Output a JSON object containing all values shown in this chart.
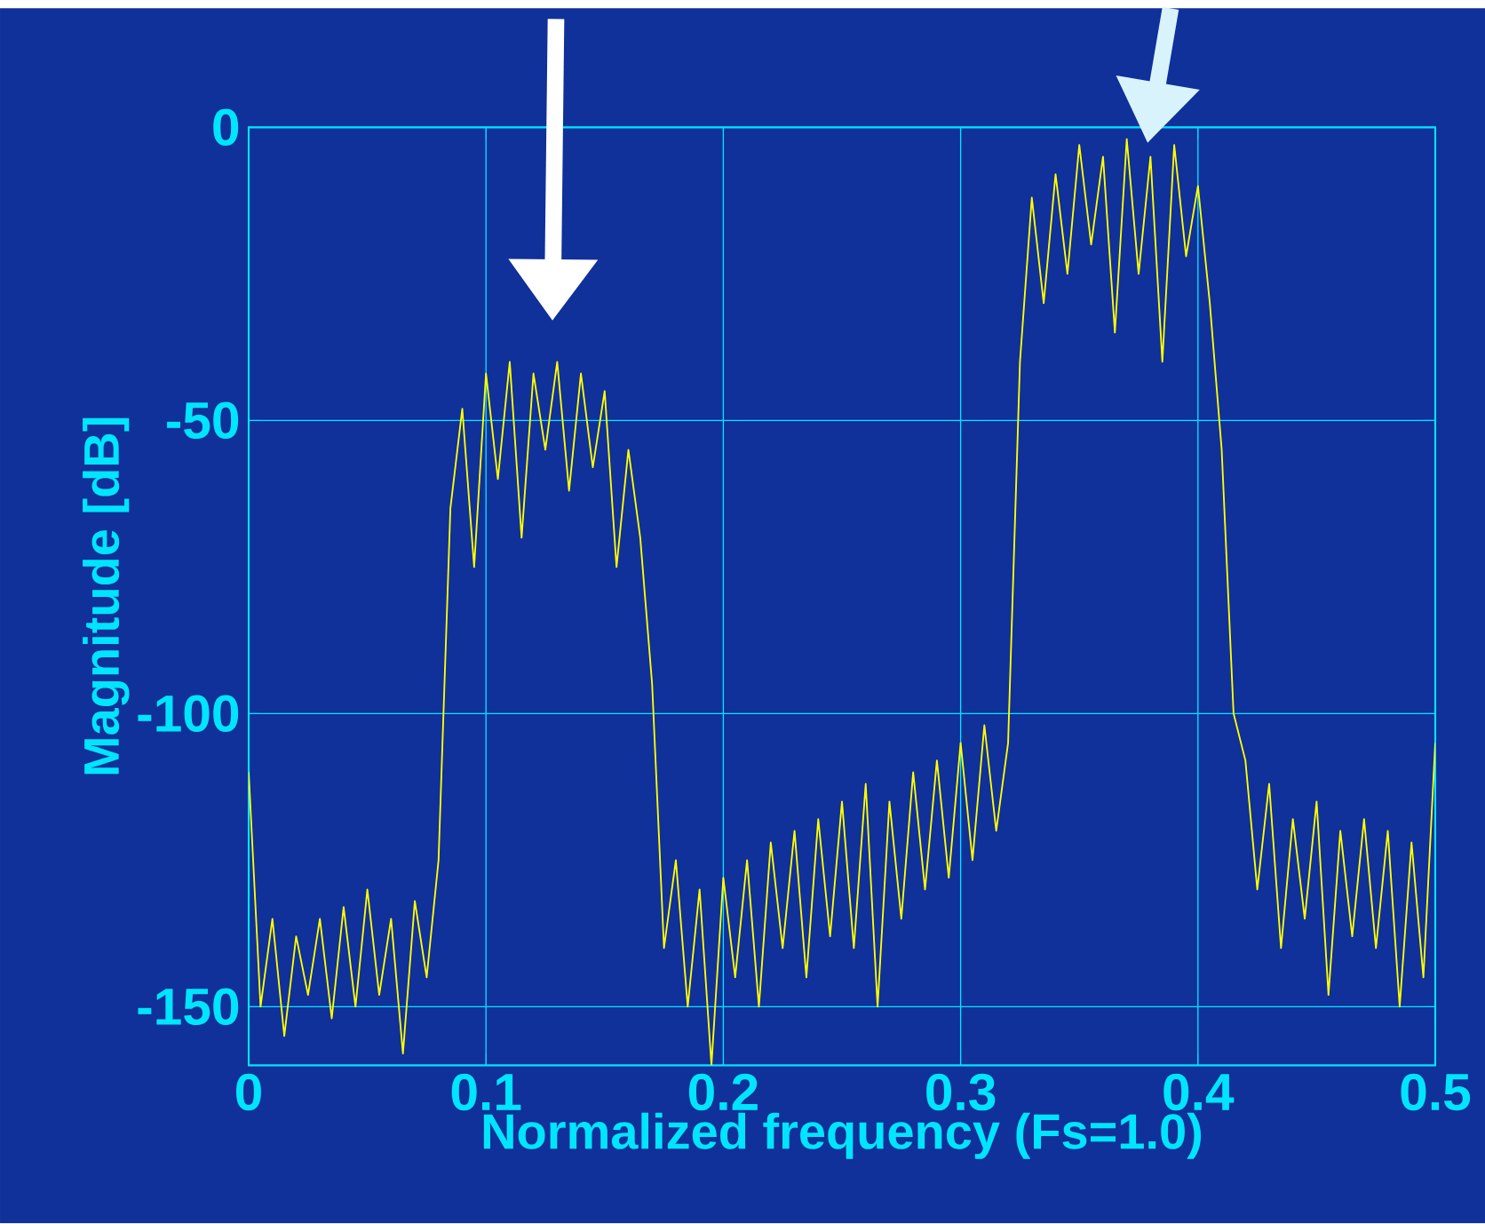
{
  "chart_data": {
    "type": "line",
    "xlabel": "Normalized frequency (Fs=1.0)",
    "ylabel": "Magnitude [dB]",
    "x": [
      0.0,
      0.005,
      0.01,
      0.015,
      0.02,
      0.025,
      0.03,
      0.035,
      0.04,
      0.045,
      0.05,
      0.055,
      0.06,
      0.065,
      0.07,
      0.075,
      0.08,
      0.085,
      0.09,
      0.095,
      0.1,
      0.105,
      0.11,
      0.115,
      0.12,
      0.125,
      0.13,
      0.135,
      0.14,
      0.145,
      0.15,
      0.155,
      0.16,
      0.165,
      0.17,
      0.175,
      0.18,
      0.185,
      0.19,
      0.195,
      0.2,
      0.205,
      0.21,
      0.215,
      0.22,
      0.225,
      0.23,
      0.235,
      0.24,
      0.245,
      0.25,
      0.255,
      0.26,
      0.265,
      0.27,
      0.275,
      0.28,
      0.285,
      0.29,
      0.295,
      0.3,
      0.305,
      0.31,
      0.315,
      0.32,
      0.325,
      0.33,
      0.335,
      0.34,
      0.345,
      0.35,
      0.355,
      0.36,
      0.365,
      0.37,
      0.375,
      0.38,
      0.385,
      0.39,
      0.395,
      0.4,
      0.405,
      0.41,
      0.415,
      0.42,
      0.425,
      0.43,
      0.435,
      0.44,
      0.445,
      0.45,
      0.455,
      0.46,
      0.465,
      0.47,
      0.475,
      0.48,
      0.485,
      0.49,
      0.495,
      0.5
    ],
    "series": [
      {
        "color": "#ffff00",
        "values": [
          -110,
          -150,
          -135,
          -155,
          -138,
          -148,
          -135,
          -152,
          -133,
          -150,
          -130,
          -148,
          -135,
          -158,
          -132,
          -145,
          -125,
          -65,
          -48,
          -75,
          -42,
          -60,
          -40,
          -70,
          -42,
          -55,
          -40,
          -62,
          -42,
          -58,
          -45,
          -75,
          -55,
          -70,
          -95,
          -140,
          -125,
          -150,
          -130,
          -160,
          -128,
          -145,
          -125,
          -150,
          -122,
          -140,
          -120,
          -145,
          -118,
          -138,
          -115,
          -140,
          -112,
          -150,
          -115,
          -135,
          -110,
          -130,
          -108,
          -128,
          -105,
          -125,
          -102,
          -120,
          -105,
          -40,
          -12,
          -30,
          -8,
          -25,
          -3,
          -20,
          -5,
          -35,
          -2,
          -25,
          -5,
          -40,
          -3,
          -22,
          -10,
          -30,
          -55,
          -100,
          -108,
          -130,
          -112,
          -140,
          -118,
          -135,
          -115,
          -148,
          -120,
          -138,
          -118,
          -140,
          -120,
          -150,
          -122,
          -145,
          -105
        ]
      }
    ],
    "xlim": [
      0,
      0.5
    ],
    "ylim": [
      -160,
      0
    ],
    "xticks": [
      0,
      0.1,
      0.2,
      0.3,
      0.4,
      0.5
    ],
    "yticks": [
      -150,
      -100,
      -50,
      0
    ],
    "grid": true,
    "line_style": "solid",
    "marker": "none"
  }
}
